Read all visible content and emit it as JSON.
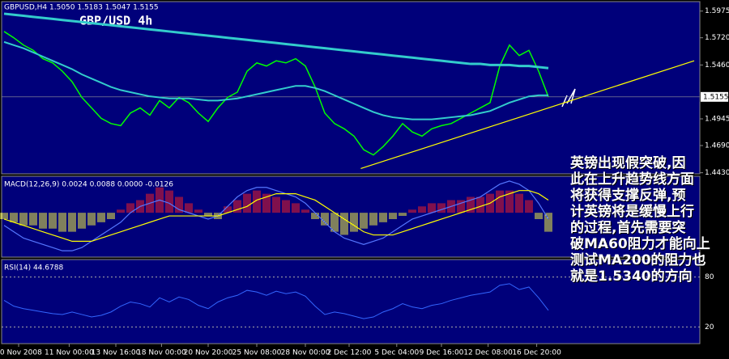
{
  "header": "GBPUSD,H4  1.5050 1.5183 1.5047 1.5155",
  "chart_title": "GBP/USD 4h",
  "note": [
    "英镑出现假突破,因",
    "此在上升趋势线方面",
    "将获得支撑反弹,预",
    "计英镑将是缓慢上行",
    "的过程,首先需要突",
    "破MA60阻力才能向上",
    "测试MA200的阻力也",
    "就是1.5340的方向"
  ],
  "xticks": [
    {
      "value": 1.5,
      "label": "10 Nov 2008"
    },
    {
      "value": 6.7,
      "label": "11 Nov 00:00"
    },
    {
      "value": 11.5,
      "label": "13 Nov 16:00"
    },
    {
      "value": 16.2,
      "label": "18 Nov 00:00"
    },
    {
      "value": 21,
      "label": "20 Nov 20:00"
    },
    {
      "value": 26,
      "label": "25 Nov 08:00"
    },
    {
      "value": 31,
      "label": "28 Nov 00:00"
    },
    {
      "value": 35.5,
      "label": "2 Dec 12:00"
    },
    {
      "value": 40.4,
      "label": "5 Dec 04:00"
    },
    {
      "value": 45,
      "label": "9 Dec 16:00"
    },
    {
      "value": 49.8,
      "label": "12 Dec 08:00"
    },
    {
      "value": 54.8,
      "label": "16 Dec 20:00"
    }
  ],
  "chart_data": [
    {
      "type": "line",
      "ylim": [
        1.4435,
        1.605
      ],
      "yticks": [
        {
          "value": 1.5975,
          "label": "1.5975"
        },
        {
          "value": 1.572,
          "label": "1.5720"
        },
        {
          "value": 1.546,
          "label": "1.5460"
        },
        {
          "value": 1.4945,
          "label": "1.4945"
        },
        {
          "value": 1.469,
          "label": "1.4690"
        },
        {
          "value": 1.443,
          "label": "1.4430"
        }
      ],
      "current": {
        "value": 1.5155,
        "label": "1.5155"
      },
      "series": [
        {
          "color": "#00ff00",
          "width": 1.5,
          "values": [
            1.578,
            1.572,
            1.565,
            1.56,
            1.552,
            1.548,
            1.54,
            1.53,
            1.515,
            1.505,
            1.495,
            1.49,
            1.488,
            1.5,
            1.505,
            1.498,
            1.512,
            1.505,
            1.515,
            1.51,
            1.5,
            1.492,
            1.505,
            1.515,
            1.52,
            1.54,
            1.548,
            1.545,
            1.55,
            1.548,
            1.552,
            1.545,
            1.525,
            1.5,
            1.49,
            1.485,
            1.478,
            1.465,
            1.46,
            1.468,
            1.478,
            1.49,
            1.482,
            1.478,
            1.485,
            1.488,
            1.49,
            1.495,
            1.5,
            1.505,
            1.51,
            1.545,
            1.565,
            1.555,
            1.56,
            1.54,
            1.5155
          ]
        },
        {
          "color": "#33cccc",
          "width": 3,
          "values": [
            1.595,
            1.594,
            1.593,
            1.592,
            1.591,
            1.59,
            1.589,
            1.588,
            1.587,
            1.586,
            1.585,
            1.584,
            1.583,
            1.582,
            1.581,
            1.58,
            1.579,
            1.578,
            1.577,
            1.576,
            1.575,
            1.574,
            1.573,
            1.572,
            1.571,
            1.57,
            1.569,
            1.568,
            1.567,
            1.566,
            1.565,
            1.564,
            1.563,
            1.562,
            1.561,
            1.56,
            1.559,
            1.558,
            1.557,
            1.556,
            1.555,
            1.554,
            1.553,
            1.552,
            1.551,
            1.55,
            1.549,
            1.548,
            1.547,
            1.547,
            1.546,
            1.546,
            1.546,
            1.545,
            1.545,
            1.544,
            1.543
          ]
        },
        {
          "color": "#33cccc",
          "width": 2,
          "values": [
            1.568,
            1.565,
            1.562,
            1.558,
            1.554,
            1.55,
            1.546,
            1.542,
            1.537,
            1.533,
            1.529,
            1.525,
            1.522,
            1.52,
            1.518,
            1.516,
            1.515,
            1.514,
            1.514,
            1.514,
            1.513,
            1.512,
            1.512,
            1.513,
            1.514,
            1.516,
            1.518,
            1.52,
            1.522,
            1.524,
            1.526,
            1.526,
            1.524,
            1.521,
            1.517,
            1.513,
            1.509,
            1.505,
            1.501,
            1.498,
            1.496,
            1.495,
            1.494,
            1.494,
            1.494,
            1.495,
            1.496,
            1.497,
            1.498,
            1.5,
            1.502,
            1.506,
            1.51,
            1.513,
            1.516,
            1.517,
            1.517
          ]
        }
      ],
      "trendline": {
        "color": "#ffff00",
        "x": [
          36.7,
          71
        ],
        "values": [
          1.447,
          1.55
        ]
      }
    },
    {
      "type": "macd",
      "header": "MACD(12,26,9) 0.0024 0.0088 0.0000 -0.0126",
      "ylim": [
        -0.014,
        0.011
      ],
      "values": [
        -0.002,
        -0.003,
        -0.004,
        -0.004,
        -0.005,
        -0.005,
        -0.006,
        -0.006,
        -0.005,
        -0.004,
        -0.003,
        -0.002,
        0.001,
        0.003,
        0.004,
        0.006,
        0.008,
        0.007,
        0.005,
        0.003,
        0.001,
        -0.001,
        -0.002,
        0.002,
        0.004,
        0.006,
        0.007,
        0.006,
        0.005,
        0.004,
        0.003,
        0.001,
        -0.002,
        -0.004,
        -0.006,
        -0.007,
        -0.006,
        -0.005,
        -0.004,
        -0.003,
        -0.002,
        -0.001,
        0.001,
        0.002,
        0.003,
        0.003,
        0.004,
        0.004,
        0.005,
        0.005,
        0.006,
        0.007,
        0.007,
        0.006,
        0.004,
        -0.002,
        -0.006
      ],
      "series": [
        {
          "color": "#5577ff",
          "values": [
            -0.004,
            -0.006,
            -0.008,
            -0.009,
            -0.01,
            -0.011,
            -0.012,
            -0.012,
            -0.011,
            -0.009,
            -0.007,
            -0.005,
            -0.003,
            0.0,
            0.002,
            0.003,
            0.004,
            0.003,
            0.001,
            0.0,
            -0.001,
            -0.002,
            -0.001,
            0.002,
            0.005,
            0.007,
            0.008,
            0.008,
            0.007,
            0.006,
            0.005,
            0.003,
            0.0,
            -0.003,
            -0.006,
            -0.008,
            -0.009,
            -0.01,
            -0.009,
            -0.008,
            -0.006,
            -0.004,
            -0.002,
            -0.001,
            0.0,
            0.001,
            0.002,
            0.003,
            0.004,
            0.005,
            0.007,
            0.009,
            0.01,
            0.009,
            0.007,
            0.003,
            -0.002
          ]
        },
        {
          "color": "#ffff00",
          "values": [
            -0.002,
            -0.003,
            -0.004,
            -0.005,
            -0.006,
            -0.007,
            -0.008,
            -0.009,
            -0.009,
            -0.009,
            -0.008,
            -0.007,
            -0.006,
            -0.005,
            -0.004,
            -0.003,
            -0.002,
            -0.001,
            -0.001,
            -0.001,
            -0.001,
            -0.001,
            -0.001,
            0.0,
            0.001,
            0.002,
            0.004,
            0.005,
            0.006,
            0.006,
            0.006,
            0.005,
            0.004,
            0.002,
            0.0,
            -0.002,
            -0.004,
            -0.006,
            -0.007,
            -0.007,
            -0.007,
            -0.006,
            -0.005,
            -0.004,
            -0.003,
            -0.002,
            -0.001,
            0.0,
            0.001,
            0.002,
            0.003,
            0.005,
            0.006,
            0.007,
            0.007,
            0.006,
            0.004
          ]
        }
      ]
    },
    {
      "type": "rsi",
      "header": "RSI(14) 44.6788",
      "ylim": [
        0,
        100
      ],
      "yticks": [
        80,
        20
      ],
      "series": [
        {
          "color": "#3366ff",
          "values": [
            52,
            45,
            42,
            40,
            38,
            36,
            35,
            38,
            35,
            32,
            34,
            38,
            45,
            50,
            48,
            44,
            55,
            50,
            56,
            53,
            46,
            42,
            50,
            55,
            58,
            64,
            62,
            58,
            63,
            60,
            62,
            57,
            45,
            35,
            38,
            36,
            33,
            30,
            32,
            38,
            42,
            48,
            44,
            42,
            46,
            48,
            52,
            55,
            58,
            60,
            62,
            70,
            72,
            65,
            68,
            55,
            40
          ]
        }
      ]
    }
  ]
}
